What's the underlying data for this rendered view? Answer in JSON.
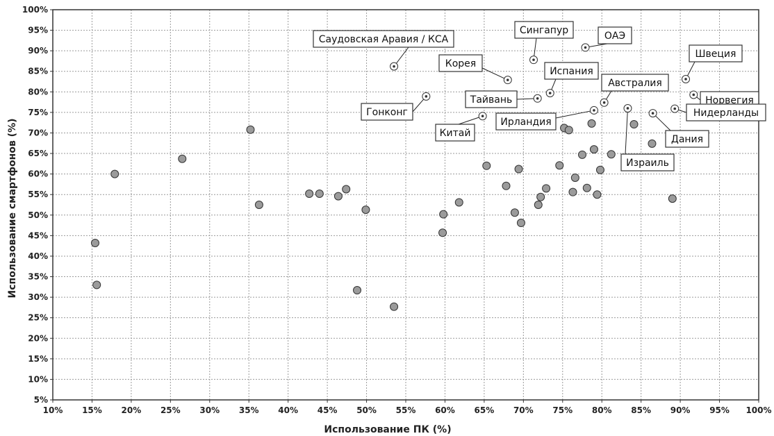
{
  "chart_data": {
    "type": "scatter",
    "xlabel": "Использование ПК (%)",
    "ylabel": "Использование смартфонов (%)",
    "xlim": [
      10,
      100
    ],
    "ylim": [
      5,
      100
    ],
    "x_ticks": [
      "10%",
      "15%",
      "20%",
      "25%",
      "30%",
      "35%",
      "40%",
      "45%",
      "50%",
      "55%",
      "60%",
      "65%",
      "70%",
      "75%",
      "80%",
      "85%",
      "90%",
      "95%",
      "100%"
    ],
    "y_ticks": [
      "5%",
      "10%",
      "15%",
      "20%",
      "25%",
      "30%",
      "35%",
      "40%",
      "45%",
      "50%",
      "55%",
      "60%",
      "65%",
      "70%",
      "75%",
      "80%",
      "85%",
      "90%",
      "95%",
      "100%"
    ],
    "grid": true,
    "points": [
      {
        "x": 15.4,
        "y": 43.2
      },
      {
        "x": 15.6,
        "y": 33.0
      },
      {
        "x": 17.9,
        "y": 60.0
      },
      {
        "x": 26.5,
        "y": 63.7
      },
      {
        "x": 35.2,
        "y": 70.8
      },
      {
        "x": 36.3,
        "y": 52.5
      },
      {
        "x": 42.7,
        "y": 55.2
      },
      {
        "x": 44.0,
        "y": 55.2
      },
      {
        "x": 46.4,
        "y": 54.6
      },
      {
        "x": 47.4,
        "y": 56.3
      },
      {
        "x": 48.8,
        "y": 31.7
      },
      {
        "x": 49.9,
        "y": 51.3
      },
      {
        "x": 53.5,
        "y": 27.7
      },
      {
        "x": 59.7,
        "y": 45.7
      },
      {
        "x": 59.8,
        "y": 50.2
      },
      {
        "x": 61.8,
        "y": 53.1
      },
      {
        "x": 65.3,
        "y": 62.0
      },
      {
        "x": 67.8,
        "y": 57.1
      },
      {
        "x": 68.9,
        "y": 50.6
      },
      {
        "x": 69.4,
        "y": 61.2
      },
      {
        "x": 69.7,
        "y": 48.1
      },
      {
        "x": 71.9,
        "y": 52.5
      },
      {
        "x": 72.2,
        "y": 54.4
      },
      {
        "x": 72.9,
        "y": 56.5
      },
      {
        "x": 74.6,
        "y": 62.1
      },
      {
        "x": 75.2,
        "y": 71.2
      },
      {
        "x": 75.8,
        "y": 70.7
      },
      {
        "x": 76.3,
        "y": 55.6
      },
      {
        "x": 76.6,
        "y": 59.1
      },
      {
        "x": 77.5,
        "y": 64.7
      },
      {
        "x": 78.1,
        "y": 56.6
      },
      {
        "x": 78.7,
        "y": 72.3
      },
      {
        "x": 79.0,
        "y": 66.0
      },
      {
        "x": 79.4,
        "y": 55.0
      },
      {
        "x": 79.8,
        "y": 61.0
      },
      {
        "x": 81.2,
        "y": 64.8
      },
      {
        "x": 84.1,
        "y": 72.1
      },
      {
        "x": 86.4,
        "y": 67.4
      },
      {
        "x": 89.0,
        "y": 54.0
      }
    ],
    "annotations": [
      {
        "label": "Саудовская Аравия / КСА",
        "x": 53.5,
        "y": 86.2
      },
      {
        "label": "Сингапур",
        "x": 71.3,
        "y": 87.8
      },
      {
        "label": "ОАЭ",
        "x": 77.9,
        "y": 90.8
      },
      {
        "label": "Корея",
        "x": 68.0,
        "y": 82.9
      },
      {
        "label": "Испания",
        "x": 73.4,
        "y": 79.7
      },
      {
        "label": "Тайвань",
        "x": 71.8,
        "y": 78.4
      },
      {
        "label": "Гонконг",
        "x": 57.6,
        "y": 78.9
      },
      {
        "label": "Китай",
        "x": 64.8,
        "y": 74.1
      },
      {
        "label": "Австралия",
        "x": 80.3,
        "y": 77.4
      },
      {
        "label": "Ирландия",
        "x": 79.0,
        "y": 75.5
      },
      {
        "label": "Израиль",
        "x": 83.3,
        "y": 76.0
      },
      {
        "label": "Дания",
        "x": 86.5,
        "y": 74.8
      },
      {
        "label": "Швеция",
        "x": 90.7,
        "y": 83.1
      },
      {
        "label": "Норвегия",
        "x": 91.7,
        "y": 79.3
      },
      {
        "label": "Нидерланды",
        "x": 89.3,
        "y": 75.9
      }
    ]
  }
}
